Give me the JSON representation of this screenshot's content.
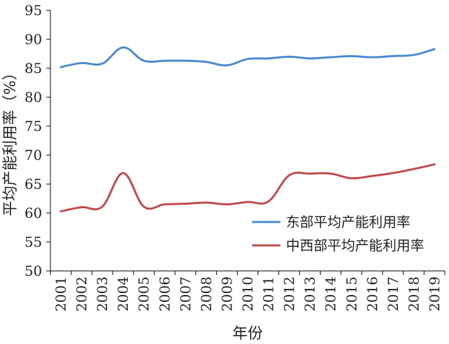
{
  "chart_data": {
    "type": "line",
    "title": "",
    "xlabel": "年份",
    "ylabel": "平均产能利用率（%）",
    "ylim": [
      50,
      95
    ],
    "yticks": [
      50,
      55,
      60,
      65,
      70,
      75,
      80,
      85,
      90,
      95
    ],
    "categories": [
      "2001",
      "2002",
      "2003",
      "2004",
      "2005",
      "2006",
      "2007",
      "2008",
      "2009",
      "2010",
      "2011",
      "2012",
      "2013",
      "2014",
      "2015",
      "2016",
      "2017",
      "2018",
      "2019"
    ],
    "grid": false,
    "legend_position": "bottom-right",
    "series": [
      {
        "name": "东部平均产能利用率",
        "color": "#4A8BD0",
        "values": [
          85.2,
          85.9,
          85.8,
          88.6,
          86.3,
          86.3,
          86.3,
          86.1,
          85.5,
          86.6,
          86.7,
          87.0,
          86.7,
          86.9,
          87.1,
          86.9,
          87.1,
          87.3,
          88.3
        ]
      },
      {
        "name": "中西部平均产能利用率",
        "color": "#BF4B4F",
        "values": [
          60.3,
          61.0,
          61.1,
          66.9,
          61.1,
          61.5,
          61.6,
          61.8,
          61.5,
          61.9,
          62.0,
          66.5,
          66.8,
          66.8,
          66.0,
          66.4,
          66.9,
          67.6,
          68.4
        ]
      }
    ]
  }
}
